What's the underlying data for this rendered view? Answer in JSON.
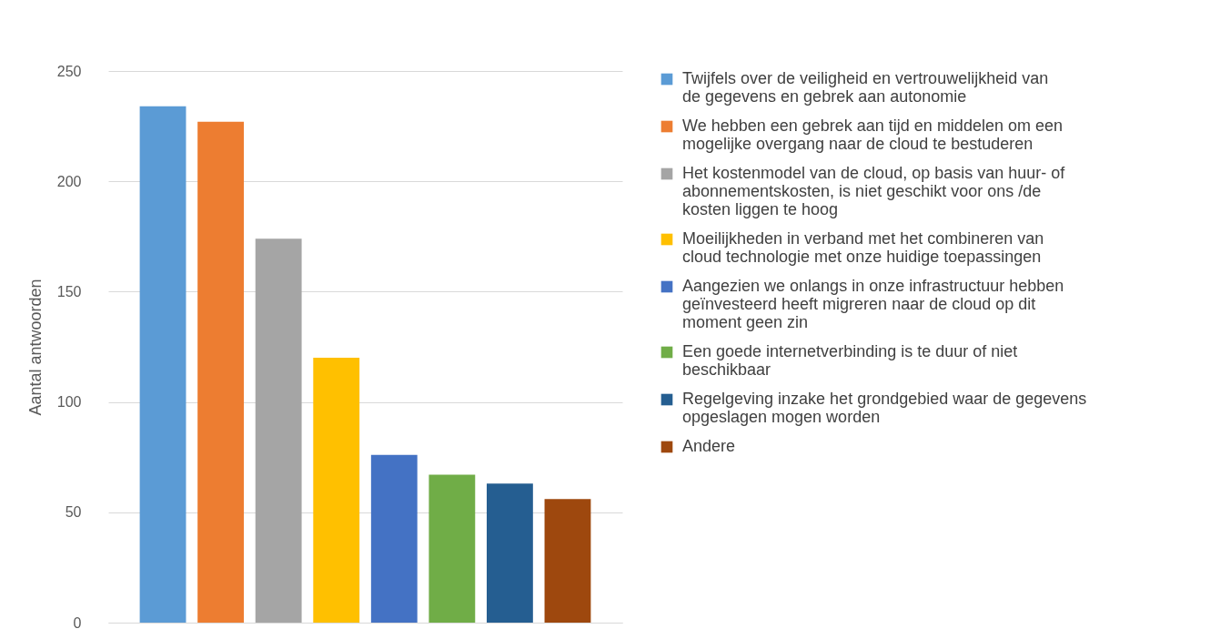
{
  "chart_data": {
    "type": "bar",
    "ylabel": "Aantal antwoorden",
    "categories": [
      null
    ],
    "series": [
      {
        "name": "Twijfels over de veiligheid en vertrouwelijkheid van de gegevens en gebrek aan autonomie",
        "color": "#5b9bd5",
        "values": [
          234
        ]
      },
      {
        "name": "We hebben een gebrek aan tijd en middelen om een mogelijke overgang naar de cloud te bestuderen",
        "color": "#ed7d31",
        "values": [
          227
        ]
      },
      {
        "name": "Het kostenmodel van de cloud, op basis van huur- of abonnementskosten, is niet geschikt voor ons /de kosten liggen te hoog",
        "color": "#a5a5a5",
        "values": [
          174
        ]
      },
      {
        "name": "Moeilijkheden in verband met het combineren van cloud technologie met onze huidige toepassingen",
        "color": "#ffc000",
        "values": [
          120
        ]
      },
      {
        "name": "Aangezien we onlangs in onze infrastructuur hebben geïnvesteerd heeft migreren naar de cloud op dit moment geen zin",
        "color": "#4472c4",
        "values": [
          76
        ]
      },
      {
        "name": "Een goede internetverbinding is te duur of niet beschikbaar",
        "color": "#70ad47",
        "values": [
          67
        ]
      },
      {
        "name": "Regelgeving inzake het grondgebied waar de gegevens opgeslagen mogen worden",
        "color": "#255e91",
        "values": [
          63
        ]
      },
      {
        "name": "Andere",
        "color": "#9e480e",
        "values": [
          56
        ]
      }
    ],
    "ylim": [
      0,
      250
    ],
    "yticks": [
      0,
      50,
      100,
      150,
      200,
      250
    ],
    "grid": "y",
    "legend": "right"
  }
}
